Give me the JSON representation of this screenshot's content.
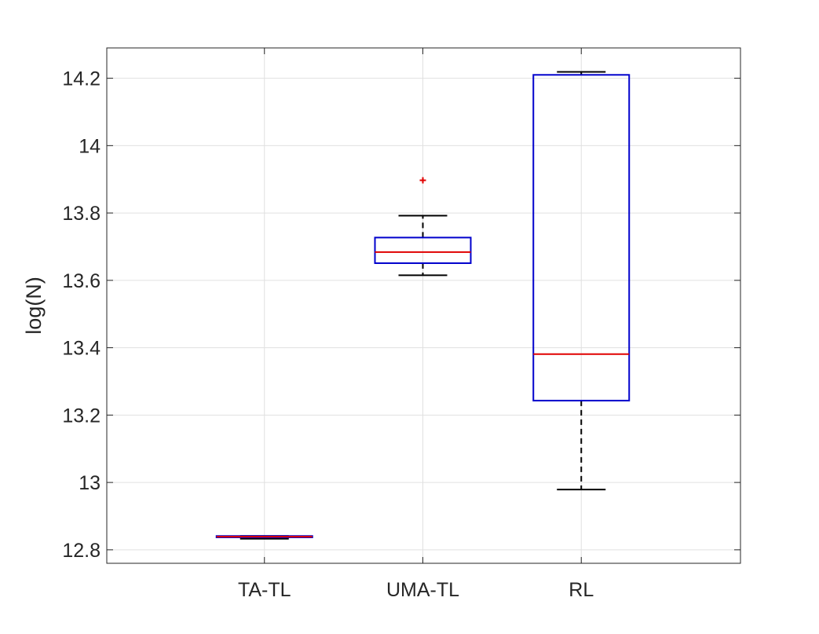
{
  "chart_data": {
    "type": "box",
    "title": "",
    "xlabel": "",
    "ylabel": "log(N)",
    "ylim": [
      12.76,
      14.29
    ],
    "yticks": [
      12.8,
      13,
      13.2,
      13.4,
      13.6,
      13.8,
      14,
      14.2
    ],
    "ytick_labels": [
      "12.8",
      "13",
      "13.2",
      "13.4",
      "13.6",
      "13.8",
      "14",
      "14.2"
    ],
    "grid": true,
    "categories": [
      "TA-TL",
      "UMA-TL",
      "RL"
    ],
    "boxes": [
      {
        "category": "TA-TL",
        "whisker_low": 12.833,
        "q1": 12.837,
        "median": 12.839,
        "q3": 12.841,
        "whisker_high": 12.841,
        "outliers": []
      },
      {
        "category": "UMA-TL",
        "whisker_low": 13.615,
        "q1": 13.651,
        "median": 13.684,
        "q3": 13.727,
        "whisker_high": 13.792,
        "outliers": [
          13.897
        ]
      },
      {
        "category": "RL",
        "whisker_low": 12.979,
        "q1": 13.243,
        "median": 13.381,
        "q3": 14.21,
        "whisker_high": 14.219,
        "outliers": []
      }
    ],
    "colors": {
      "box": "#0000cc",
      "median": "#e00000",
      "whisker": "#000000",
      "outlier": "#e00000",
      "grid": "#e0e0e0",
      "axis": "#262626"
    }
  }
}
